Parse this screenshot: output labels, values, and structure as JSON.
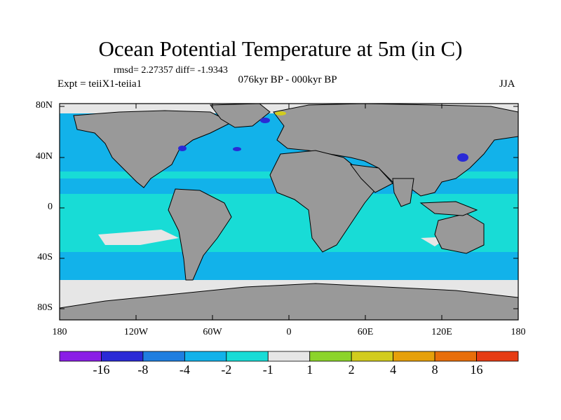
{
  "header": {
    "title": "Ocean Potential Temperature at 5m (in C)",
    "stats": "rmsd= 2.27357 diff= -1.9343",
    "subtitle": "076kyr BP - 000kyr BP",
    "expt": "Expt = teiiX1-teiia1",
    "season": "JJA"
  },
  "chart_data": {
    "type": "heatmap",
    "title": "Ocean Potential Temperature at 5m (in C)",
    "subtitle": "076kyr BP - 000kyr BP",
    "xlim": [
      -180,
      180
    ],
    "ylim": [
      -90,
      90
    ],
    "x_ticks": [
      "180",
      "120W",
      "60W",
      "0",
      "60E",
      "120E",
      "180"
    ],
    "y_ticks": [
      "80N",
      "40N",
      "0",
      "40S",
      "80S"
    ],
    "colorbar": {
      "levels": [
        "-16",
        "-8",
        "-4",
        "-2",
        "-1",
        "1",
        "2",
        "4",
        "8",
        "16"
      ],
      "colors": [
        "#8a1ee6",
        "#2a2ad6",
        "#1f7ee0",
        "#12b2ea",
        "#18dcd6",
        "#e6e6e6",
        "#8cd42a",
        "#d2cc1e",
        "#e6a00a",
        "#e86e0a",
        "#e63c14"
      ]
    },
    "land_color": "#999999",
    "dominant_bins": {
      "tropics": "-1 to -2",
      "midlatitudes": "-2 to -4",
      "southern_ocean": "-1 to 1"
    }
  }
}
